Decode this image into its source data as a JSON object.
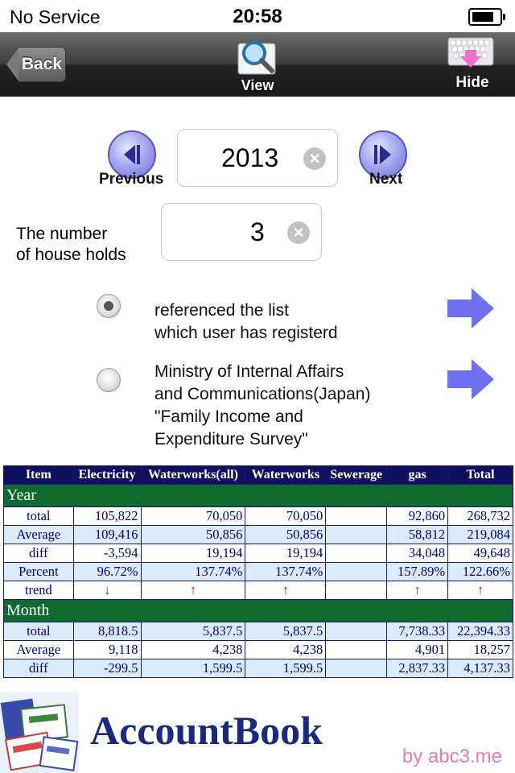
{
  "status_bar": {
    "carrier": "No Service",
    "time": "20:58"
  },
  "toolbar": {
    "back_label": "Back",
    "view_label": "View",
    "hide_label": "Hide"
  },
  "year_picker": {
    "previous_label": "Previous",
    "next_label": "Next",
    "year_value": "2013"
  },
  "households": {
    "label_line1": "The number",
    "label_line2": "of house holds",
    "value": "3"
  },
  "options": [
    {
      "lines": [
        "referenced the list",
        "which user has registerd"
      ],
      "selected": true
    },
    {
      "lines": [
        "Ministry of Internal Affairs",
        "and Communications(Japan)",
        "\"Family Income and",
        "Expenditure Survey\""
      ],
      "selected": false
    }
  ],
  "table": {
    "headers": [
      "Item",
      "Electricity",
      "Waterworks(all)",
      "Waterworks",
      "Sewerage",
      "gas",
      "Total"
    ],
    "sections": [
      {
        "title": "Year",
        "rows": [
          {
            "label": "total",
            "cells": [
              "105,822",
              "70,050",
              "70,050",
              "",
              "92,860",
              "268,732"
            ]
          },
          {
            "label": "Average",
            "cells": [
              "109,416",
              "50,856",
              "50,856",
              "",
              "58,812",
              "219,084"
            ]
          },
          {
            "label": "diff",
            "cells": [
              "-3,594",
              "19,194",
              "19,194",
              "",
              "34,048",
              "49,648"
            ]
          },
          {
            "label": "Percent",
            "cells": [
              "96.72%",
              "137.74%",
              "137.74%",
              "",
              "157.89%",
              "122.66%"
            ]
          },
          {
            "label": "trend",
            "cells": [
              "↓",
              "↑",
              "↑",
              "",
              "↑",
              "↑"
            ]
          }
        ]
      },
      {
        "title": "Month",
        "rows": [
          {
            "label": "total",
            "cells": [
              "8,818.5",
              "5,837.5",
              "5,837.5",
              "",
              "7,738.33",
              "22,394.33"
            ]
          },
          {
            "label": "Average",
            "cells": [
              "9,118",
              "4,238",
              "4,238",
              "",
              "4,901",
              "18,257"
            ]
          },
          {
            "label": "diff",
            "cells": [
              "-299.5",
              "1,599.5",
              "1,599.5",
              "",
              "2,837.33",
              "4,137.33"
            ]
          }
        ]
      }
    ]
  },
  "banner": {
    "title": "AccountBook",
    "by": "by abc3.me"
  },
  "colors": {
    "header_bg": "#0f0f60",
    "section_bg": "#0e6a2e",
    "row_alt": "#dcebfa",
    "trend_up": "#e00000",
    "trend_down": "#0038d6",
    "arrow": "#6f6ff0"
  }
}
